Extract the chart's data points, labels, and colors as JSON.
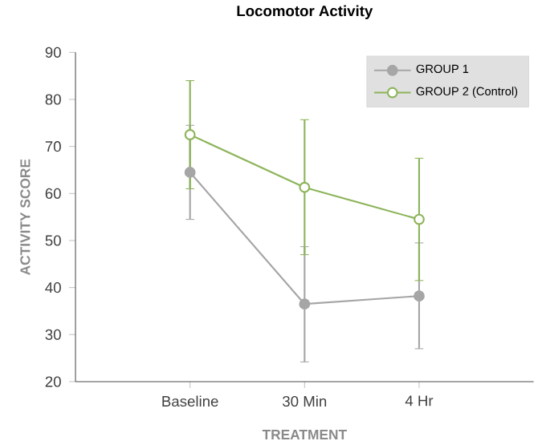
{
  "chart_data": {
    "type": "line",
    "title": "Locomotor Activity",
    "xlabel": "TREATMENT",
    "ylabel": "ACTIVITY SCORE",
    "categories": [
      "Baseline",
      "30 Min",
      "4 Hr"
    ],
    "series": [
      {
        "name": "GROUP 1",
        "color": "#a6a6a6",
        "values": [
          64.5,
          36.5,
          38.2
        ],
        "errors": [
          [
            54.5,
            74.5
          ],
          [
            24.2,
            48.7
          ],
          [
            27,
            49.5
          ]
        ]
      },
      {
        "name": "GROUP 2 (Control)",
        "color": "#8db45a",
        "values": [
          72.5,
          61.3,
          54.5
        ],
        "errors": [
          [
            61,
            84
          ],
          [
            47,
            75.7
          ],
          [
            41.5,
            67.5
          ]
        ]
      }
    ],
    "ylim": [
      20,
      90
    ],
    "yticks": [
      20,
      30,
      40,
      50,
      60,
      70,
      80,
      90
    ],
    "grid": false,
    "legend": "top right",
    "marker": "circle",
    "line_style": "solid"
  }
}
